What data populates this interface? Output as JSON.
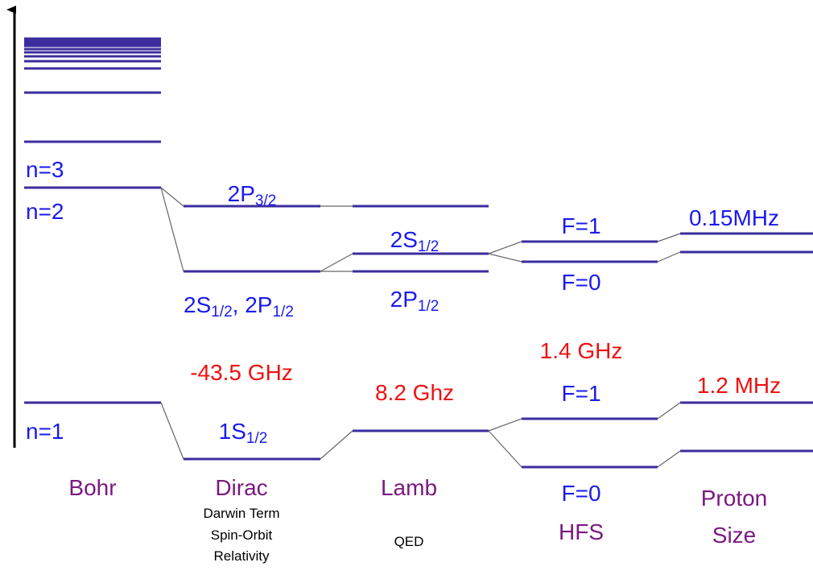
{
  "bohr": {
    "title": "Bohr",
    "levels": {
      "n3": "n=3",
      "n2": "n=2",
      "n1": "n=1"
    }
  },
  "dirac": {
    "title": "Dirac",
    "notes": [
      "Darwin Term",
      "Spin-Orbit",
      "Relativity"
    ],
    "shift": "-43.5 GHz",
    "states": {
      "p32": {
        "main": "2P",
        "sub": "3/2"
      },
      "s12p12": [
        {
          "main": "2S",
          "sub": "1/2"
        },
        {
          "main": ", 2P",
          "sub": "1/2"
        }
      ],
      "s1": {
        "main": "1S",
        "sub": "1/2"
      }
    }
  },
  "lamb": {
    "title": "Lamb",
    "note": "QED",
    "shift": "8.2 Ghz",
    "states": {
      "s12": {
        "main": "2S",
        "sub": "1/2"
      },
      "p12": {
        "main": "2P",
        "sub": "1/2"
      }
    }
  },
  "hfs": {
    "title": "HFS",
    "shift": "1.4 GHz",
    "states": {
      "upper_f1": "F=1",
      "upper_f0": "F=0",
      "lower_f1": "F=1",
      "lower_f0": "F=0"
    }
  },
  "proton": {
    "title": [
      "Proton",
      "Size"
    ],
    "upper_shift": "0.15MHz",
    "lower_shift": "1.2 MHz"
  }
}
